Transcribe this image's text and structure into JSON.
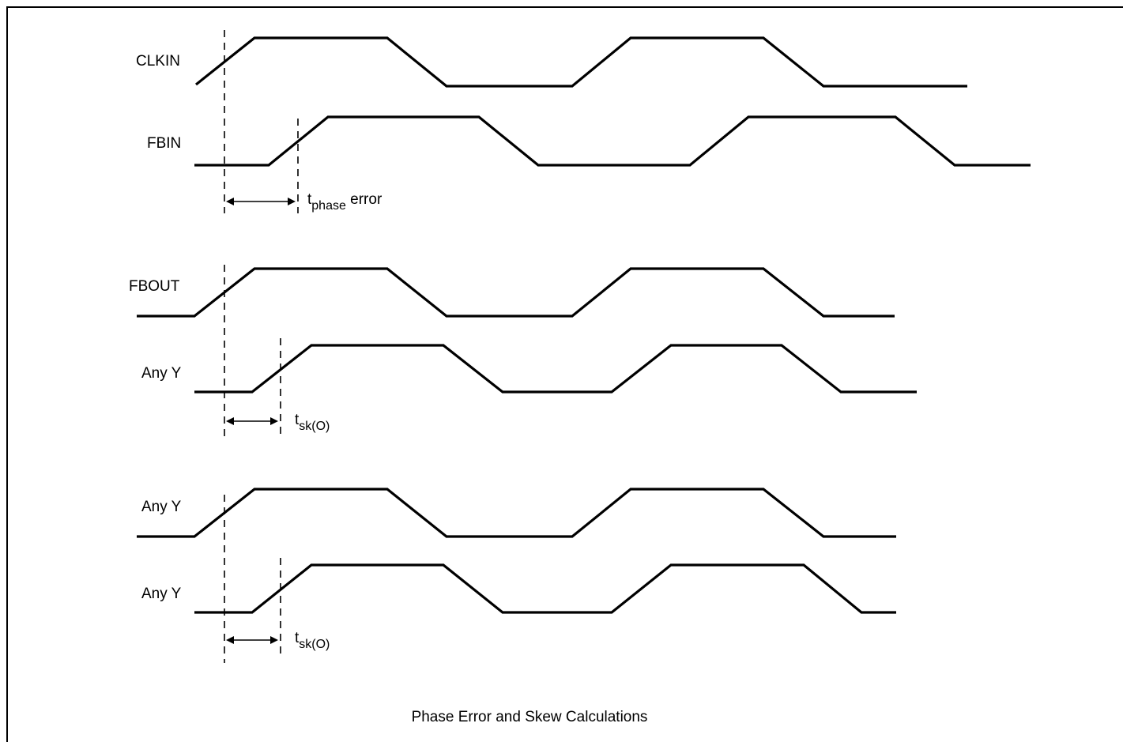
{
  "signals": {
    "s1": "CLKIN",
    "s2": "FBIN",
    "s3": "FBOUT",
    "s4": "Any Y",
    "s5": "Any Y",
    "s6": "Any Y"
  },
  "annotations": {
    "phase": {
      "t": "t",
      "sub": "phase",
      "rest": " error"
    },
    "skew1": {
      "t": "t",
      "sub": "sk(O)"
    },
    "skew2": {
      "t": "t",
      "sub": "sk(O)"
    }
  },
  "caption": "Phase Error and Skew Calculations"
}
